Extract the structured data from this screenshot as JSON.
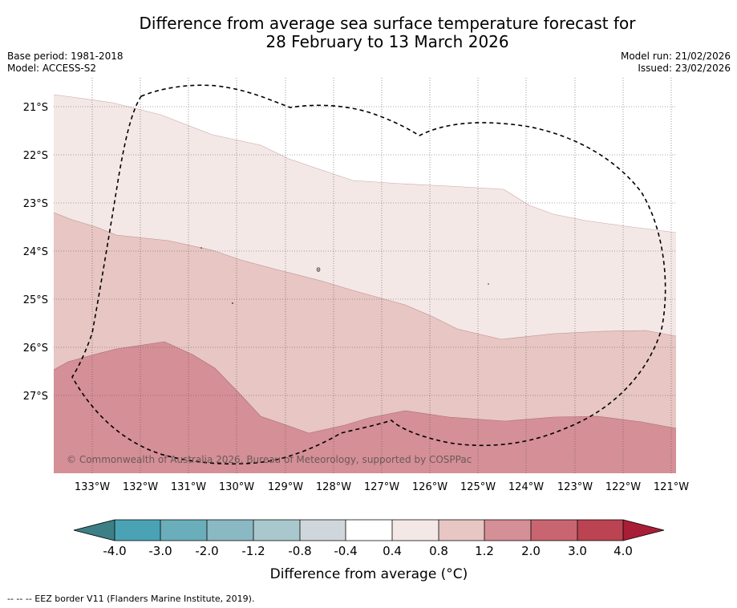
{
  "title": {
    "line1": "Difference from average sea surface temperature forecast for",
    "line2": "28 February to 13 March 2026"
  },
  "meta": {
    "base_period": "Base period: 1981-2018",
    "model": "Model: ACCESS-S2",
    "model_run": "Model run: 21/02/2026",
    "issued": "Issued: 23/02/2026"
  },
  "map": {
    "lon_labels": [
      "133°W",
      "132°W",
      "131°W",
      "130°W",
      "129°W",
      "128°W",
      "127°W",
      "126°W",
      "125°W",
      "124°W",
      "123°W",
      "122°W",
      "121°W"
    ],
    "lat_labels": [
      "21°S",
      "22°S",
      "23°S",
      "24°S",
      "25°S",
      "26°S",
      "27°S"
    ],
    "copyright": "© Commonwealth of Australia 2026, Bureau of Meteorology, supported by COSPPac",
    "bands": [
      {
        "range": "0.4 to 0.8",
        "color": "#f4e8e7"
      },
      {
        "range": "0.8 to 1.2",
        "color": "#e7c6c3"
      },
      {
        "range": "1.2 to 2.0",
        "color": "#d58f96"
      }
    ],
    "eez_border": "EEZ border dashed line"
  },
  "colorbar": {
    "ticks": [
      "-4.0",
      "-3.0",
      "-2.0",
      "-1.2",
      "-0.8",
      "-0.4",
      "0.4",
      "0.8",
      "1.2",
      "2.0",
      "3.0",
      "4.0"
    ],
    "colors": [
      "#3d7f86",
      "#4aa3b5",
      "#6aaebb",
      "#8ab8c3",
      "#a9c8cd",
      "#d0d7dc",
      "#ffffff",
      "#f4e8e7",
      "#e7c6c3",
      "#d58f96",
      "#c96570",
      "#bb4352",
      "#a81e36"
    ],
    "label": "Difference from average (°C)"
  },
  "footer": "--  --  -- EEZ border V11 (Flanders Marine Institute, 2019)."
}
